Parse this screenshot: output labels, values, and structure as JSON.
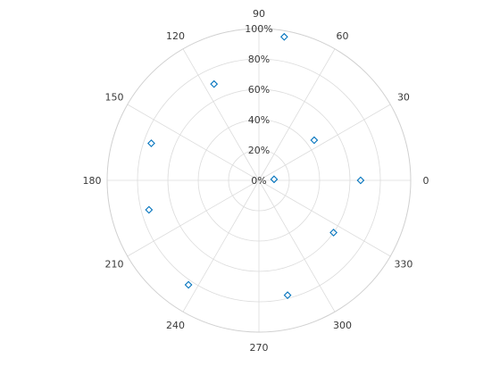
{
  "chart_data": {
    "type": "scatter",
    "coordinate_system": "polar",
    "title": "",
    "theta_unit": "degrees",
    "theta_ticks": [
      0,
      30,
      60,
      90,
      120,
      150,
      180,
      210,
      240,
      270,
      300,
      330
    ],
    "theta_tick_labels": [
      "0",
      "30",
      "60",
      "90",
      "120",
      "150",
      "180",
      "210",
      "240",
      "270",
      "300",
      "330"
    ],
    "r_ticks": [
      0,
      20,
      40,
      60,
      80,
      100
    ],
    "r_tick_labels": [
      "0%",
      "20%",
      "40%",
      "60%",
      "80%",
      "100%"
    ],
    "r_tick_angle_deg": 90,
    "rlim": [
      0,
      100
    ],
    "marker": "diamond",
    "marker_color": "#0072BD",
    "grid": true,
    "series": [
      {
        "points": [
          {
            "theta": 0,
            "r": 67
          },
          {
            "theta": 4,
            "r": 10
          },
          {
            "theta": 36,
            "r": 45
          },
          {
            "theta": 80,
            "r": 96
          },
          {
            "theta": 115,
            "r": 70
          },
          {
            "theta": 161,
            "r": 75
          },
          {
            "theta": 195,
            "r": 75
          },
          {
            "theta": 236,
            "r": 83
          },
          {
            "theta": 284,
            "r": 78
          },
          {
            "theta": 325,
            "r": 60
          }
        ]
      }
    ]
  }
}
